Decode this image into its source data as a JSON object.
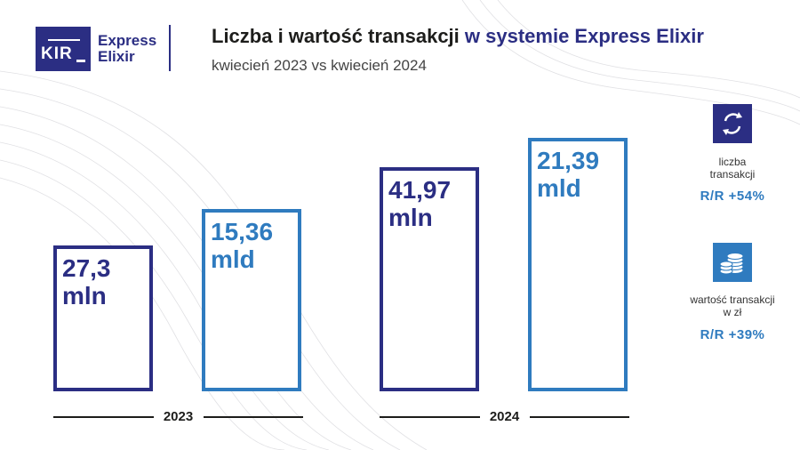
{
  "logo": {
    "kir": "KIR",
    "line1": "Express",
    "line2": "Elixir"
  },
  "header": {
    "title_part1": "Liczba i wartość transakcji",
    "title_part2": "w systemie Express Elixir",
    "subtitle": "kwiecień 2023 vs kwiecień 2024"
  },
  "colors": {
    "navy": "#2b2e83",
    "blue": "#2f7bbf"
  },
  "chart_data": {
    "type": "bar",
    "categories": [
      "2023",
      "2024"
    ],
    "series": [
      {
        "name": "liczba transakcji",
        "unit": "mln",
        "values": [
          27.3,
          41.97
        ],
        "labels": [
          "27,3\nmln",
          "41,97\nmln"
        ],
        "color": "#2b2e83"
      },
      {
        "name": "wartość transakcji w zł",
        "unit": "mld",
        "values": [
          15.36,
          21.39
        ],
        "labels": [
          "15,36\nmld",
          "21,39\nmld"
        ],
        "color": "#2f7bbf"
      }
    ],
    "xlabel": "",
    "ylabel": "",
    "grid": false,
    "legend": "right"
  },
  "kpis": [
    {
      "icon": "exchange-arrows-icon",
      "label": "liczba\ntransakcji",
      "value": "R/R +54%"
    },
    {
      "icon": "coins-stack-icon",
      "label": "wartość transakcji\nw zł",
      "value": "R/R +39%"
    }
  ]
}
